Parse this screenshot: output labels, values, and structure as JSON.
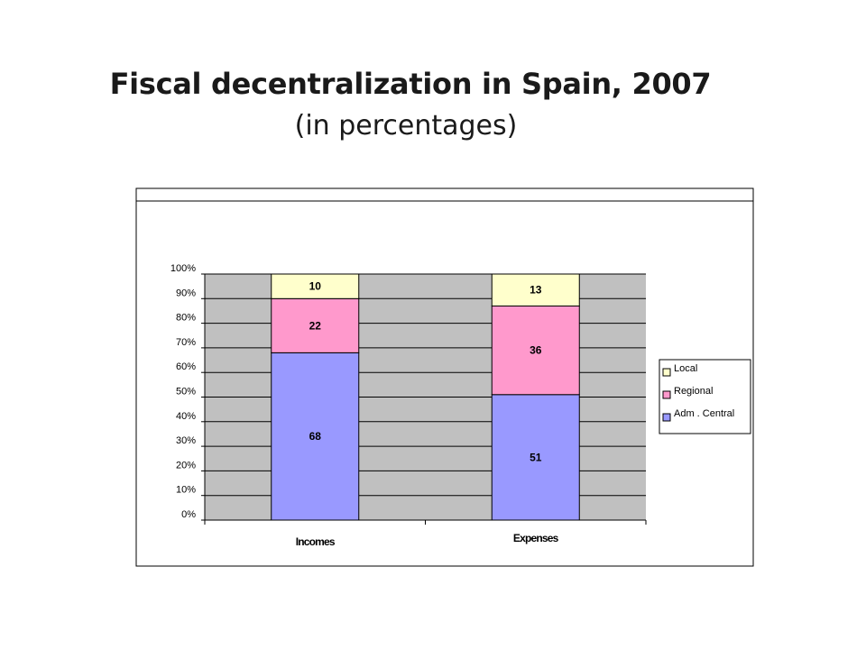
{
  "chart_data": {
    "type": "bar",
    "stacked": true,
    "title": "Fiscal decentralization in Spain, 2007",
    "subtitle": "(in percentages)",
    "categories": [
      "Incomes",
      "Expenses"
    ],
    "series": [
      {
        "name": "Adm . Central",
        "values": [
          68,
          51
        ],
        "color": "#9999ff"
      },
      {
        "name": "Regional",
        "values": [
          22,
          36
        ],
        "color": "#ff99cc"
      },
      {
        "name": "Local",
        "values": [
          10,
          13
        ],
        "color": "#ffffcc"
      }
    ],
    "ylim": [
      0,
      100
    ],
    "yticks": [
      "0%",
      "10%",
      "20%",
      "30%",
      "40%",
      "50%",
      "60%",
      "70%",
      "80%",
      "90%",
      "100%"
    ],
    "grid": true,
    "legend": "right",
    "plot_background": "#c0c0c0"
  }
}
